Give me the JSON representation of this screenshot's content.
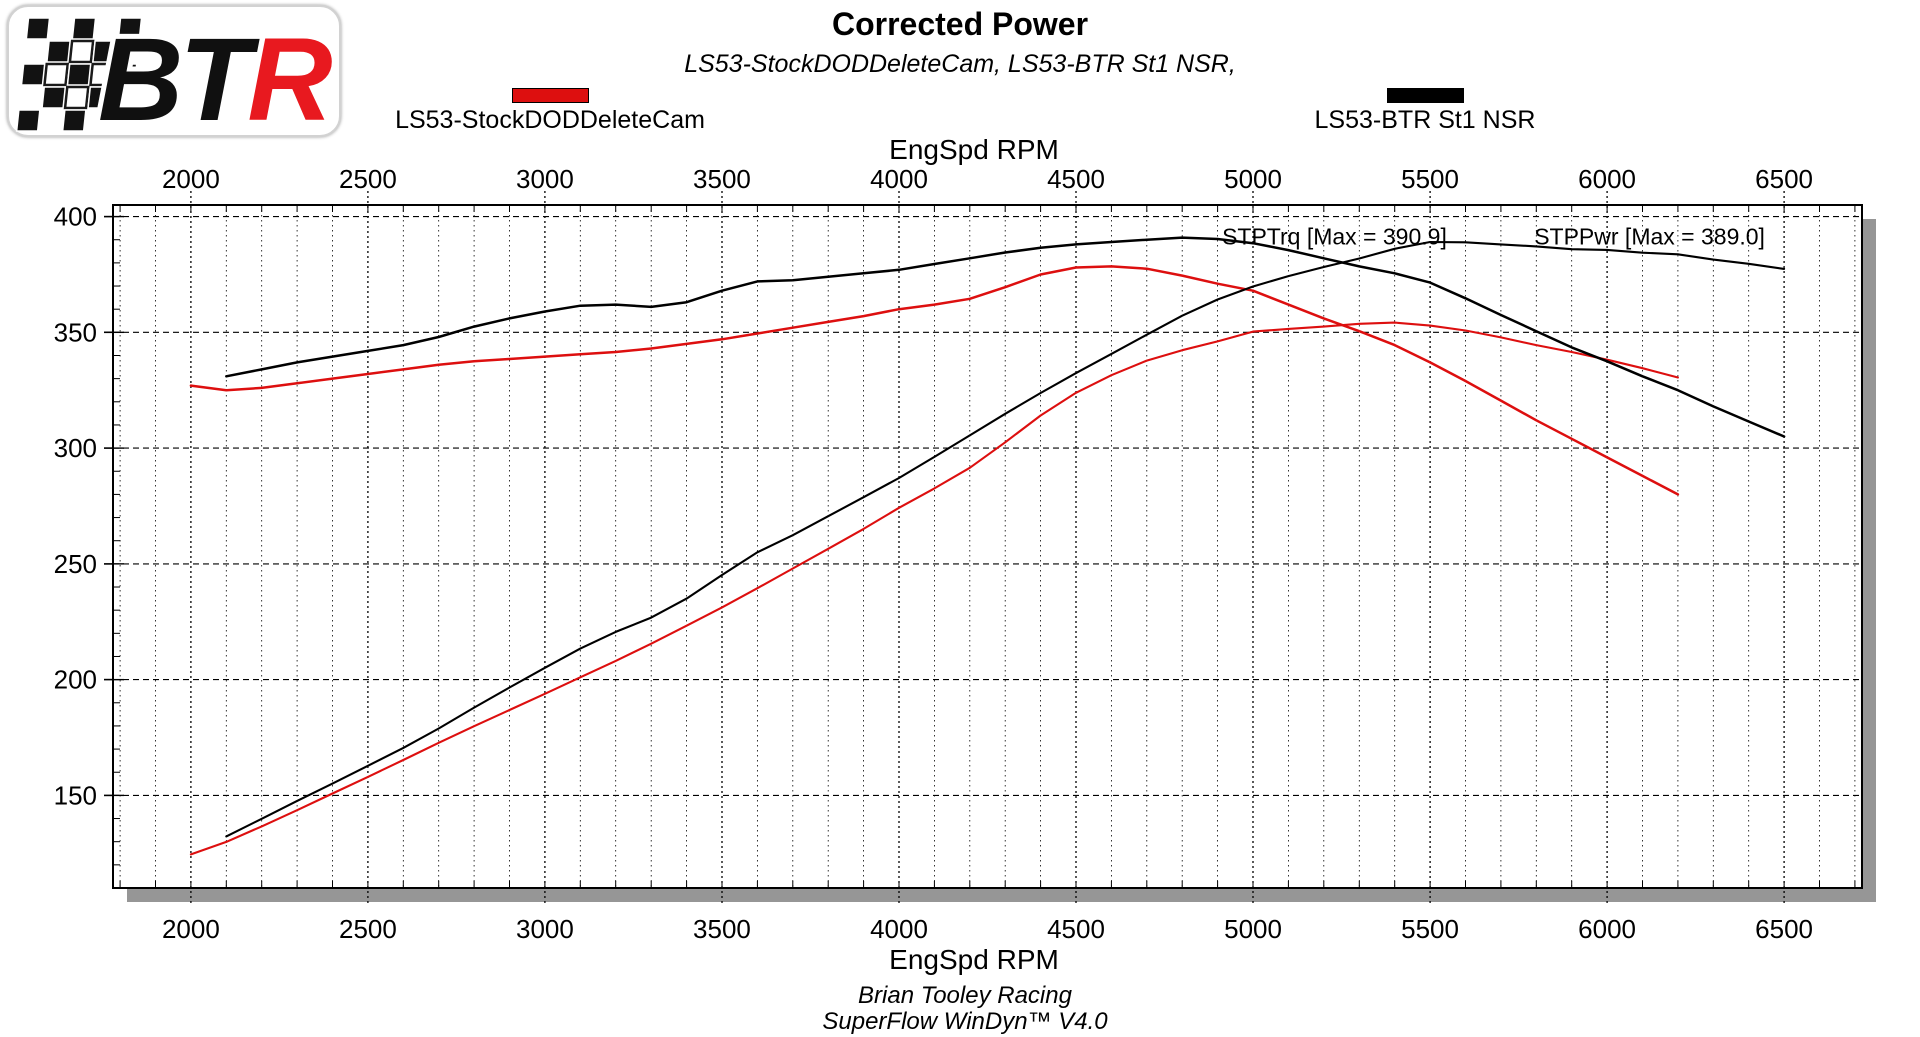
{
  "header": {
    "title": "Corrected Power",
    "subtitle": "LS53-StockDODDeleteCam, LS53-BTR St1 NSR,"
  },
  "logo": {
    "letters": [
      {
        "ch": "B",
        "color": "#101010"
      },
      {
        "ch": "T",
        "color": "#101010"
      },
      {
        "ch": "R",
        "color": "#e8191f"
      }
    ]
  },
  "legend": [
    {
      "label": "LS53-StockDODDeleteCam",
      "color": "#dd0f0f"
    },
    {
      "label": "LS53-BTR St1 NSR",
      "color": "#000000"
    }
  ],
  "axes": {
    "top_title": "EngSpd RPM",
    "bottom_title": "EngSpd RPM"
  },
  "footer": {
    "line1": "Brian Tooley Racing",
    "line2": "SuperFlow WinDyn™ V4.0"
  },
  "chart_style": {
    "shadow_color": "#969696",
    "plot_bg": "#ffffff",
    "grid_color": "#000000"
  },
  "chart_data": {
    "type": "line",
    "title": "Corrected Power",
    "subtitle": "LS53-StockDODDeleteCam, LS53-BTR St1 NSR,",
    "xlabel": "EngSpd RPM",
    "ylabel": "",
    "xlim": [
      1780,
      6720
    ],
    "ylim": [
      110,
      405
    ],
    "x_ticks": [
      2000,
      2500,
      3000,
      3500,
      4000,
      4500,
      5000,
      5500,
      6000,
      6500
    ],
    "y_ticks": [
      150,
      200,
      250,
      300,
      350,
      400
    ],
    "x_minor_step": 100,
    "y_minor_step": 10,
    "grid": true,
    "legend_position": "top",
    "annotations": [
      {
        "text": "STPTrq [Max = 390.9]",
        "rpm": 5230,
        "value": 391.5
      },
      {
        "text": "STPPwr [Max = 389.0]",
        "rpm": 6120,
        "value": 391.5
      }
    ],
    "series": [
      {
        "name": "LS53-StockDODDeleteCam STPTrq",
        "run": "LS53-StockDODDeleteCam",
        "channel": "STPTrq",
        "max": 378.5,
        "color": "#dd0f0f",
        "width": 2.5,
        "rpm": [
          2000,
          2100,
          2200,
          2300,
          2400,
          2500,
          2600,
          2700,
          2800,
          2900,
          3000,
          3100,
          3200,
          3300,
          3400,
          3500,
          3600,
          3700,
          3800,
          3900,
          4000,
          4100,
          4200,
          4300,
          4400,
          4500,
          4600,
          4700,
          4800,
          4900,
          5000,
          5100,
          5200,
          5300,
          5400,
          5500,
          5600,
          5700,
          5800,
          5900,
          6000,
          6100,
          6200
        ],
        "values": [
          327,
          325,
          326,
          328,
          330,
          332,
          334,
          336,
          337.5,
          338.5,
          339.5,
          340.5,
          341.5,
          343,
          345,
          347,
          349.5,
          352,
          354.5,
          357,
          360,
          362,
          364.5,
          369.5,
          375,
          378,
          378.5,
          377.5,
          374.5,
          371,
          368,
          362,
          356,
          350.5,
          344.5,
          337,
          329,
          320.5,
          312,
          304,
          296,
          288,
          280
        ]
      },
      {
        "name": "LS53-StockDODDeleteCam STPPwr",
        "run": "LS53-StockDODDeleteCam",
        "channel": "STPPwr",
        "max": 354.2,
        "color": "#dd0f0f",
        "width": 2.1,
        "rpm": [
          2000,
          2100,
          2200,
          2300,
          2400,
          2500,
          2600,
          2700,
          2800,
          2900,
          3000,
          3100,
          3200,
          3300,
          3400,
          3500,
          3600,
          3700,
          3800,
          3900,
          4000,
          4100,
          4200,
          4300,
          4400,
          4500,
          4600,
          4700,
          4800,
          4900,
          5000,
          5100,
          5200,
          5300,
          5400,
          5500,
          5600,
          5700,
          5800,
          5900,
          6000,
          6100,
          6200
        ],
        "values": [
          124.5,
          129.9,
          136.6,
          143.6,
          150.8,
          158,
          165.3,
          172.7,
          179.9,
          186.9,
          193.9,
          201,
          208.1,
          215.5,
          223.3,
          231.2,
          239.5,
          248,
          256.5,
          265.1,
          274.2,
          282.6,
          291.5,
          302.5,
          314.1,
          323.9,
          331.5,
          337.8,
          342.3,
          346.1,
          350.3,
          351.5,
          352.5,
          353.7,
          354.2,
          352.9,
          350.8,
          347.8,
          344.5,
          341.5,
          338.2,
          334.5,
          330.5
        ]
      },
      {
        "name": "LS53-BTR St1 NSR STPTrq",
        "run": "LS53-BTR St1 NSR",
        "channel": "STPTrq",
        "max": 390.9,
        "color": "#000000",
        "width": 2.5,
        "rpm": [
          2100,
          2200,
          2300,
          2400,
          2500,
          2600,
          2700,
          2800,
          2900,
          3000,
          3100,
          3200,
          3300,
          3400,
          3500,
          3600,
          3700,
          3800,
          3900,
          4000,
          4100,
          4200,
          4300,
          4400,
          4500,
          4600,
          4700,
          4800,
          4900,
          5000,
          5100,
          5200,
          5300,
          5400,
          5500,
          5600,
          5700,
          5800,
          5900,
          6000,
          6100,
          6200,
          6300,
          6400,
          6500
        ],
        "values": [
          331,
          334,
          337,
          339.5,
          342,
          344.5,
          348,
          352.5,
          356,
          359,
          361.5,
          362,
          361,
          363,
          368,
          372,
          372.5,
          374,
          375.5,
          377,
          379.5,
          382,
          384.5,
          386.5,
          388,
          389,
          390,
          390.9,
          390.3,
          388.5,
          385.5,
          382,
          378.5,
          375.5,
          371.5,
          364.7,
          357.5,
          350.5,
          343.5,
          337.5,
          331,
          325,
          318,
          311.5,
          305
        ]
      },
      {
        "name": "LS53-BTR St1 NSR STPPwr",
        "run": "LS53-BTR St1 NSR",
        "channel": "STPPwr",
        "max": 389.0,
        "color": "#000000",
        "width": 2.1,
        "rpm": [
          2100,
          2200,
          2300,
          2400,
          2500,
          2600,
          2700,
          2800,
          2900,
          3000,
          3100,
          3200,
          3300,
          3400,
          3500,
          3600,
          3700,
          3800,
          3900,
          4000,
          4100,
          4200,
          4300,
          4400,
          4500,
          4600,
          4700,
          4800,
          4900,
          5000,
          5100,
          5200,
          5300,
          5400,
          5500,
          5600,
          5700,
          5800,
          5900,
          6000,
          6100,
          6200,
          6300,
          6400,
          6500
        ],
        "values": [
          132.3,
          139.9,
          147.6,
          155.1,
          162.8,
          170.5,
          178.9,
          187.9,
          196.6,
          205.1,
          213.4,
          220.6,
          226.8,
          235,
          245.2,
          255,
          262.4,
          270.6,
          278.8,
          287.1,
          296.2,
          305.5,
          314.8,
          323.8,
          332.4,
          340.7,
          349,
          357.2,
          364.2,
          369.8,
          374.3,
          378.2,
          381.9,
          386.1,
          389,
          388.9,
          388,
          387.1,
          385.9,
          385.6,
          384.4,
          383.7,
          381.4,
          379.6,
          377.4
        ]
      }
    ]
  }
}
